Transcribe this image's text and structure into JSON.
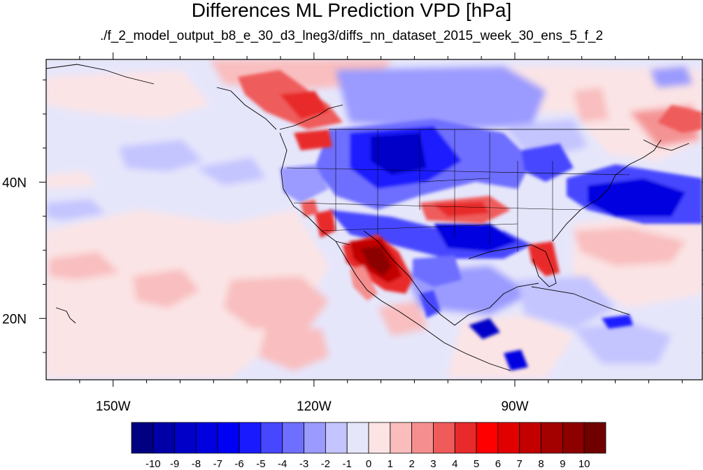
{
  "title": "Differences ML Prediction VPD [hPa]",
  "subtitle": "./f_2_model_output_b8_e_30_d3_lneg3/diffs_nn_dataset_2015_week_30_ens_5_f_2",
  "map": {
    "lon_range": [
      -160,
      -62
    ],
    "lat_range": [
      11,
      58
    ],
    "x_ticks": [
      {
        "lon": -150,
        "label": "150W"
      },
      {
        "lon": -120,
        "label": "120W"
      },
      {
        "lon": -90,
        "label": "90W"
      }
    ],
    "y_ticks": [
      {
        "lat": 40,
        "label": "40N"
      },
      {
        "lat": 20,
        "label": "20N"
      }
    ],
    "background_value": -1
  },
  "colorbar": {
    "levels": [
      "-10",
      "-9",
      "-8",
      "-7",
      "-6",
      "-5",
      "-4",
      "-3",
      "-2",
      "-1",
      "0",
      "1",
      "2",
      "3",
      "4",
      "5",
      "6",
      "7",
      "8",
      "9",
      "10"
    ],
    "colors": [
      "#000080",
      "#0000a6",
      "#0000c8",
      "#0000e0",
      "#0000f5",
      "#1a1aff",
      "#4747ff",
      "#6e6eff",
      "#9a9aff",
      "#c4c4ff",
      "#e6e6fb",
      "#fde4e4",
      "#fbbcbc",
      "#f58f8f",
      "#ef5b5b",
      "#e82a2a",
      "#ff0000",
      "#e10000",
      "#c20000",
      "#a30000",
      "#8c0000",
      "#700000"
    ]
  }
}
